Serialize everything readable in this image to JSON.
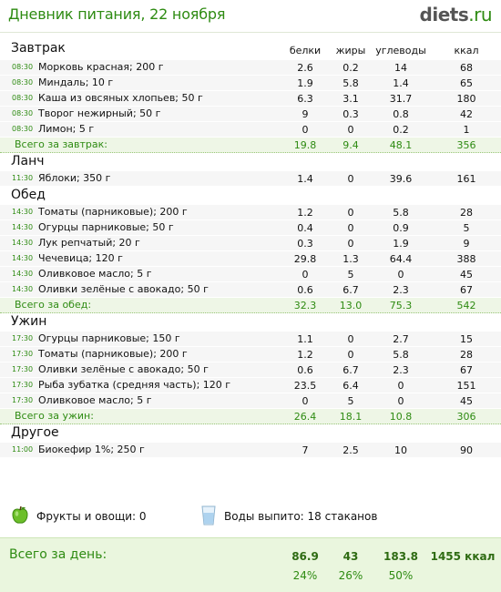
{
  "header": {
    "title": "Дневник питания, 22 ноября",
    "logo_main": "diets",
    "logo_tld": ".ru"
  },
  "columns": {
    "protein": "белки",
    "fat": "жиры",
    "carbs": "углеводы",
    "kcal": "ккал"
  },
  "meals": [
    {
      "title": "Завтрак",
      "items": [
        {
          "time": "08:30",
          "name": "Морковь красная; 200 г",
          "p": "2.6",
          "f": "0.2",
          "c": "14",
          "k": "68"
        },
        {
          "time": "08:30",
          "name": "Миндаль; 10 г",
          "p": "1.9",
          "f": "5.8",
          "c": "1.4",
          "k": "65"
        },
        {
          "time": "08:30",
          "name": "Каша из овсяных хлопьев; 50 г",
          "p": "6.3",
          "f": "3.1",
          "c": "31.7",
          "k": "180"
        },
        {
          "time": "08:30",
          "name": "Творог нежирный; 50 г",
          "p": "9",
          "f": "0.3",
          "c": "0.8",
          "k": "42"
        },
        {
          "time": "08:30",
          "name": "Лимон; 5 г",
          "p": "0",
          "f": "0",
          "c": "0.2",
          "k": "1"
        }
      ],
      "total": {
        "label": "Всего за завтрак:",
        "p": "19.8",
        "f": "9.4",
        "c": "48.1",
        "k": "356"
      }
    },
    {
      "title": "Ланч",
      "items": [
        {
          "time": "11:30",
          "name": "Яблоки; 350 г",
          "p": "1.4",
          "f": "0",
          "c": "39.6",
          "k": "161"
        }
      ]
    },
    {
      "title": "Обед",
      "items": [
        {
          "time": "14:30",
          "name": "Томаты (парниковые); 200 г",
          "p": "1.2",
          "f": "0",
          "c": "5.8",
          "k": "28"
        },
        {
          "time": "14:30",
          "name": "Огурцы парниковые; 50 г",
          "p": "0.4",
          "f": "0",
          "c": "0.9",
          "k": "5"
        },
        {
          "time": "14:30",
          "name": "Лук репчатый; 20 г",
          "p": "0.3",
          "f": "0",
          "c": "1.9",
          "k": "9"
        },
        {
          "time": "14:30",
          "name": "Чечевица; 120 г",
          "p": "29.8",
          "f": "1.3",
          "c": "64.4",
          "k": "388"
        },
        {
          "time": "14:30",
          "name": "Оливковое масло; 5 г",
          "p": "0",
          "f": "5",
          "c": "0",
          "k": "45"
        },
        {
          "time": "14:30",
          "name": "Оливки зелёные с авокадо; 50 г",
          "p": "0.6",
          "f": "6.7",
          "c": "2.3",
          "k": "67"
        }
      ],
      "total": {
        "label": "Всего за обед:",
        "p": "32.3",
        "f": "13.0",
        "c": "75.3",
        "k": "542"
      }
    },
    {
      "title": "Ужин",
      "items": [
        {
          "time": "17:30",
          "name": "Огурцы парниковые; 150 г",
          "p": "1.1",
          "f": "0",
          "c": "2.7",
          "k": "15"
        },
        {
          "time": "17:30",
          "name": "Томаты (парниковые); 200 г",
          "p": "1.2",
          "f": "0",
          "c": "5.8",
          "k": "28"
        },
        {
          "time": "17:30",
          "name": "Оливки зелёные с авокадо; 50 г",
          "p": "0.6",
          "f": "6.7",
          "c": "2.3",
          "k": "67"
        },
        {
          "time": "17:30",
          "name": "Рыба зубатка (средняя часть); 120 г",
          "p": "23.5",
          "f": "6.4",
          "c": "0",
          "k": "151"
        },
        {
          "time": "17:30",
          "name": "Оливковое масло; 5 г",
          "p": "0",
          "f": "5",
          "c": "0",
          "k": "45"
        }
      ],
      "total": {
        "label": "Всего за ужин:",
        "p": "26.4",
        "f": "18.1",
        "c": "10.8",
        "k": "306"
      }
    },
    {
      "title": "Другое",
      "items": [
        {
          "time": "11:00",
          "name": "Биокефир 1%; 250 г",
          "p": "7",
          "f": "2.5",
          "c": "10",
          "k": "90"
        }
      ]
    }
  ],
  "extras": {
    "fruits_label": "Фрукты и овощи: 0",
    "water_label": "Воды выпито: 18 стаканов",
    "fruits_icon": "green-apple-icon",
    "water_icon": "water-glass-icon"
  },
  "day_total": {
    "label": "Всего за день:",
    "protein": "86.9",
    "fat": "43",
    "carbs": "183.8",
    "kcal": "1455 ккал",
    "protein_pct": "24%",
    "fat_pct": "26%",
    "carbs_pct": "50%"
  },
  "colors": {
    "accent_green": "#2e8b12",
    "row_bg": "#f6f6f6",
    "total_bg": "#eef6e6",
    "day_total_bg": "#eaf6de"
  }
}
